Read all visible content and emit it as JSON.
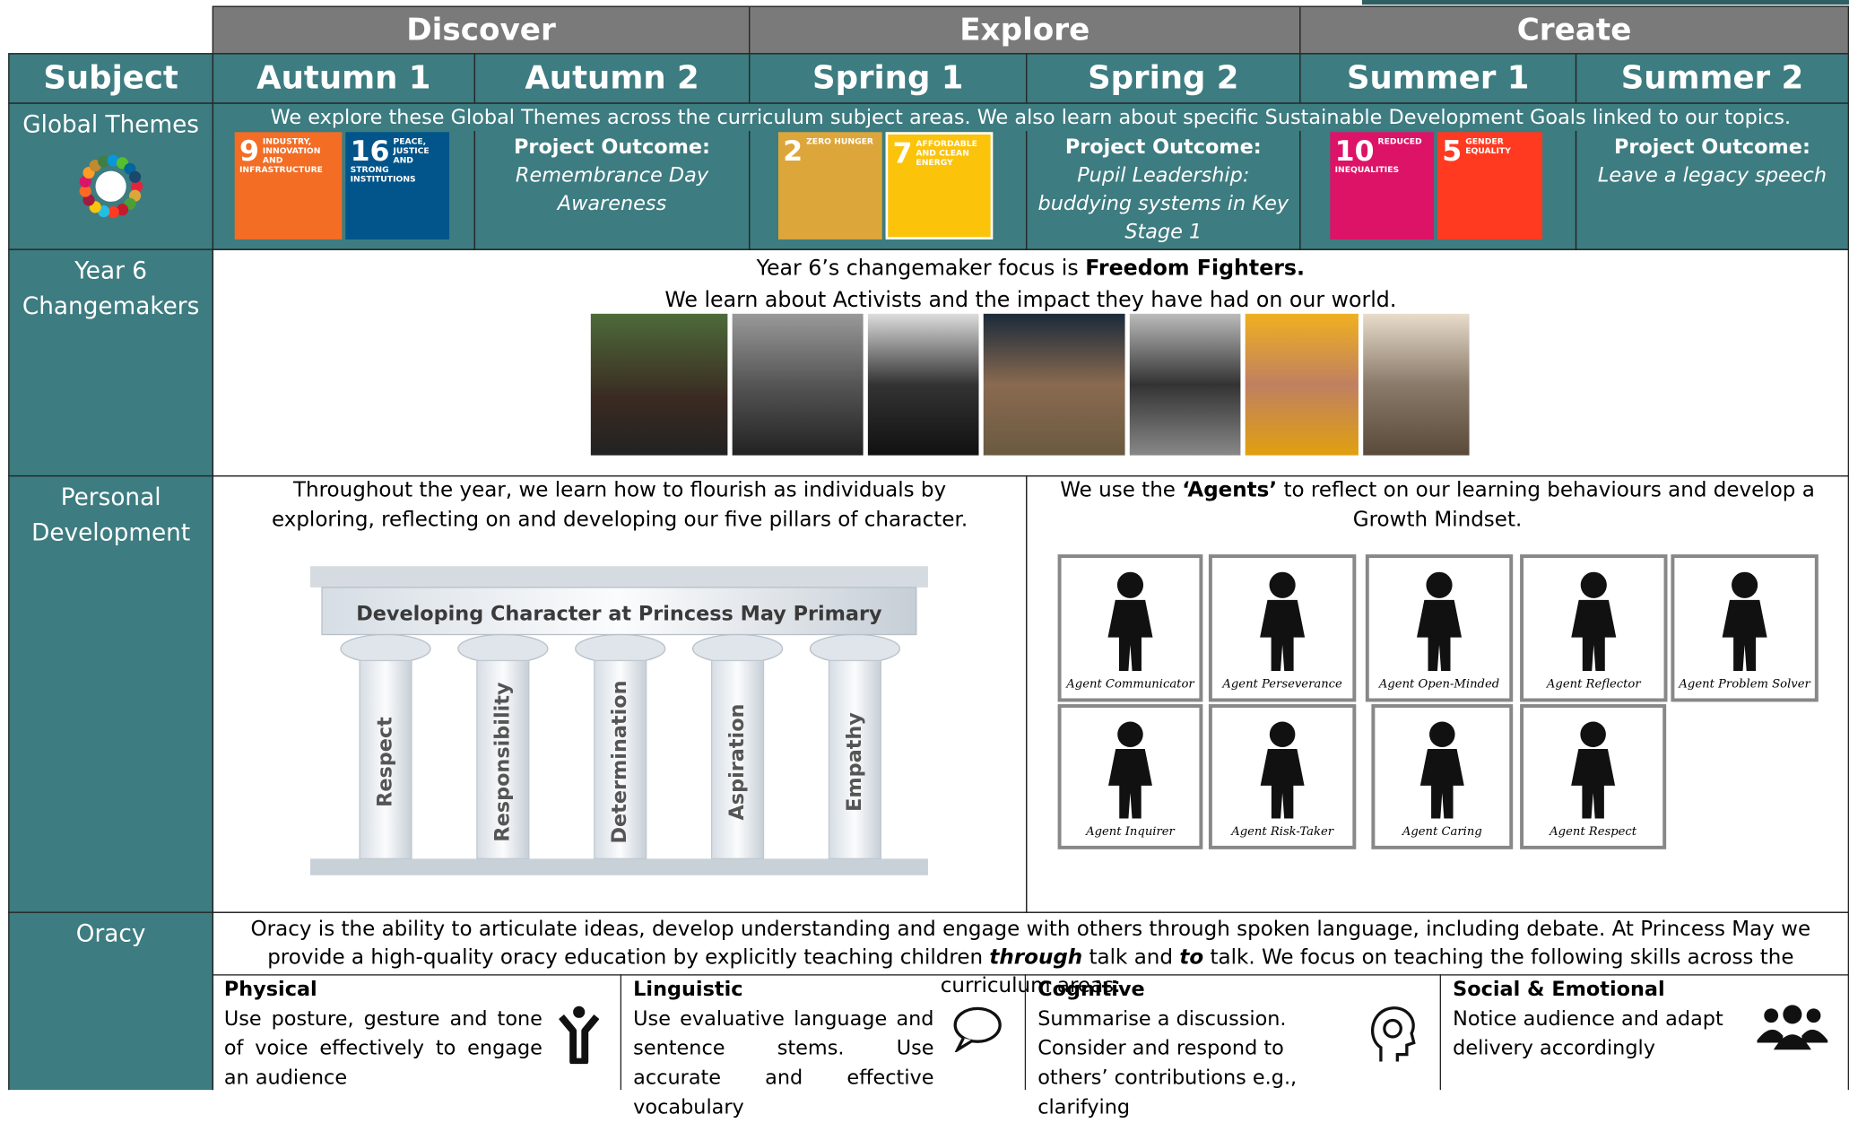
{
  "header": {
    "phases": [
      "Discover",
      "Explore",
      "Create"
    ],
    "subject": "Subject",
    "terms": [
      "Autumn 1",
      "Autumn 2",
      "Spring 1",
      "Spring 2",
      "Summer 1",
      "Summer 2"
    ]
  },
  "global_themes": {
    "label": "Global Themes",
    "intro": "We explore these Global Themes across the curriculum subject areas. We also learn about specific Sustainable Development Goals linked to our topics.",
    "goals": [
      {
        "number": "9",
        "name": "INDUSTRY, INNOVATION AND INFRASTRUCTURE"
      },
      {
        "number": "16",
        "name": "PEACE, JUSTICE AND STRONG INSTITUTIONS"
      },
      {
        "number": "2",
        "name": "ZERO HUNGER"
      },
      {
        "number": "7",
        "name": "AFFORDABLE AND CLEAN ENERGY"
      },
      {
        "number": "10",
        "name": "REDUCED INEQUALITIES"
      },
      {
        "number": "5",
        "name": "GENDER EQUALITY"
      }
    ],
    "outcomes": [
      {
        "heading": "Project Outcome:",
        "text": "Remembrance Day Awareness"
      },
      {
        "heading": "Project Outcome:",
        "text": "Pupil Leadership: buddying systems in Key Stage 1"
      },
      {
        "heading": "Project Outcome:",
        "text": "Leave a legacy speech"
      }
    ]
  },
  "changemakers": {
    "label": "Year 6 Changemakers",
    "focus": "Year 6’s changemaker focus is",
    "focus_bold": "Freedom Fighters.",
    "line2": "We learn about Activists and the impact they have had on our world."
  },
  "personal_development": {
    "label": "Personal Development",
    "pillars_intro": "Throughout the year, we learn how to flourish as individuals by exploring, reflecting on and developing our five pillars of character.",
    "pillars_title": "Developing Character at Princess May Primary",
    "pillars": [
      "Respect",
      "Responsibility",
      "Determination",
      "Aspiration",
      "Empathy"
    ],
    "agents_intro_a": "We use the",
    "agents_intro_bold": "‘Agents’",
    "agents_intro_b": "to reflect on our learning behaviours and develop a Growth Mindset.",
    "agents": [
      "Agent Communicator",
      "Agent Perseverance",
      "Agent Open-Minded",
      "Agent Reflector",
      "Agent Problem Solver",
      "Agent Inquirer",
      "Agent Risk-Taker",
      "Agent Caring",
      "Agent Respect"
    ]
  },
  "oracy": {
    "label": "Oracy",
    "intro_a": "Oracy is the ability to articulate ideas, develop understanding and engage with others through spoken language, including debate. At Princess May we provide a high-quality oracy education by explicitly teaching children",
    "intro_b": "through",
    "intro_c": "talk and",
    "intro_d": "to",
    "intro_e": "talk. We focus on teaching the following skills across the curriculum areas:",
    "skills": [
      {
        "title": "Physical",
        "text": "Use posture, gesture and tone of voice effectively to engage an audience"
      },
      {
        "title": "Linguistic",
        "text": "Use evaluative language and sentence stems. Use accurate and effective vocabulary"
      },
      {
        "title": "Cognitive",
        "text": "Summarise a discussion. Consider and respond to others’ contributions e.g., clarifying"
      },
      {
        "title": "Social & Emotional",
        "text": "Notice audience and adapt delivery accordingly"
      }
    ]
  }
}
